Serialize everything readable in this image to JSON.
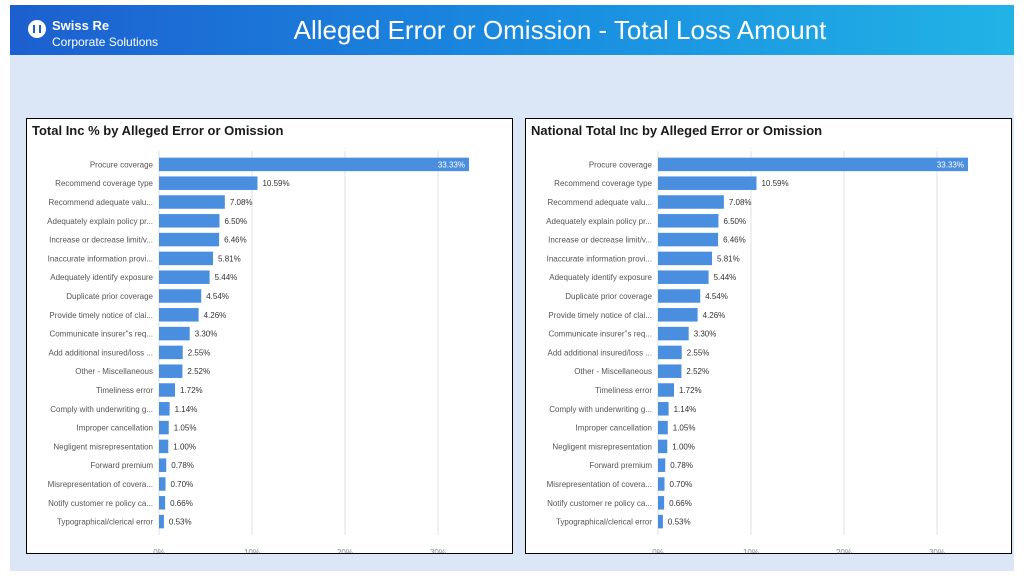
{
  "header": {
    "logo_name": "Swiss Re",
    "logo_sub": "Corporate Solutions",
    "title": "Alleged Error or Omission - Total Loss Amount"
  },
  "colors": {
    "bar": "#4a8ee0",
    "header_start": "#1c5fd0",
    "header_end": "#21b3e6",
    "background": "#dbe7f6"
  },
  "chart_data": [
    {
      "type": "bar",
      "orientation": "horizontal",
      "title": "Total Inc % by Alleged Error or Omission",
      "categories": [
        "Procure coverage",
        "Recommend coverage type",
        "Recommend adequate valu...",
        "Adequately explain policy pr...",
        "Increase or decrease limit/v...",
        "Inaccurate information provi...",
        "Adequately identify exposure",
        "Duplicate prior coverage",
        "Provide timely notice of clai...",
        "Communicate insurer''s req...",
        "Add additional insured/loss ...",
        "Other - Miscellaneous",
        "Timeliness error",
        "Comply with underwriting g...",
        "Improper cancellation",
        "Negligent misrepresentation",
        "Forward premium",
        "Misrepresentation of covera...",
        "Notify customer re policy ca...",
        "Typographical/clerical error"
      ],
      "values": [
        33.33,
        10.59,
        7.08,
        6.5,
        6.46,
        5.81,
        5.44,
        4.54,
        4.26,
        3.3,
        2.55,
        2.52,
        1.72,
        1.14,
        1.05,
        1.0,
        0.78,
        0.7,
        0.66,
        0.53
      ],
      "value_labels": [
        "33.33%",
        "10.59%",
        "7.08%",
        "6.50%",
        "6.46%",
        "5.81%",
        "5.44%",
        "4.54%",
        "4.26%",
        "3.30%",
        "2.55%",
        "2.52%",
        "1.72%",
        "1.14%",
        "1.05%",
        "1.00%",
        "0.78%",
        "0.70%",
        "0.66%",
        "0.53%"
      ],
      "xticks": [
        0,
        10,
        20,
        30
      ],
      "xtick_labels": [
        "0%",
        "10%",
        "20%",
        "30%"
      ],
      "xlim": [
        0,
        35
      ]
    },
    {
      "type": "bar",
      "orientation": "horizontal",
      "title": "National Total Inc by Alleged Error or Omission",
      "categories": [
        "Procure coverage",
        "Recommend coverage type",
        "Recommend adequate valu...",
        "Adequately explain policy pr...",
        "Increase or decrease limit/v...",
        "Inaccurate information provi...",
        "Adequately identify exposure",
        "Duplicate prior coverage",
        "Provide timely notice of clai...",
        "Communicate insurer''s req...",
        "Add additional insured/loss ...",
        "Other - Miscellaneous",
        "Timeliness error",
        "Comply with underwriting g...",
        "Improper cancellation",
        "Negligent misrepresentation",
        "Forward premium",
        "Misrepresentation of covera...",
        "Notify customer re policy ca...",
        "Typographical/clerical error"
      ],
      "values": [
        33.33,
        10.59,
        7.08,
        6.5,
        6.46,
        5.81,
        5.44,
        4.54,
        4.26,
        3.3,
        2.55,
        2.52,
        1.72,
        1.14,
        1.05,
        1.0,
        0.78,
        0.7,
        0.66,
        0.53
      ],
      "value_labels": [
        "33.33%",
        "10.59%",
        "7.08%",
        "6.50%",
        "6.46%",
        "5.81%",
        "5.44%",
        "4.54%",
        "4.26%",
        "3.30%",
        "2.55%",
        "2.52%",
        "1.72%",
        "1.14%",
        "1.05%",
        "1.00%",
        "0.78%",
        "0.70%",
        "0.66%",
        "0.53%"
      ],
      "xticks": [
        0,
        10,
        20,
        30
      ],
      "xtick_labels": [
        "0%",
        "10%",
        "20%",
        "30%"
      ],
      "xlim": [
        0,
        35
      ]
    }
  ]
}
